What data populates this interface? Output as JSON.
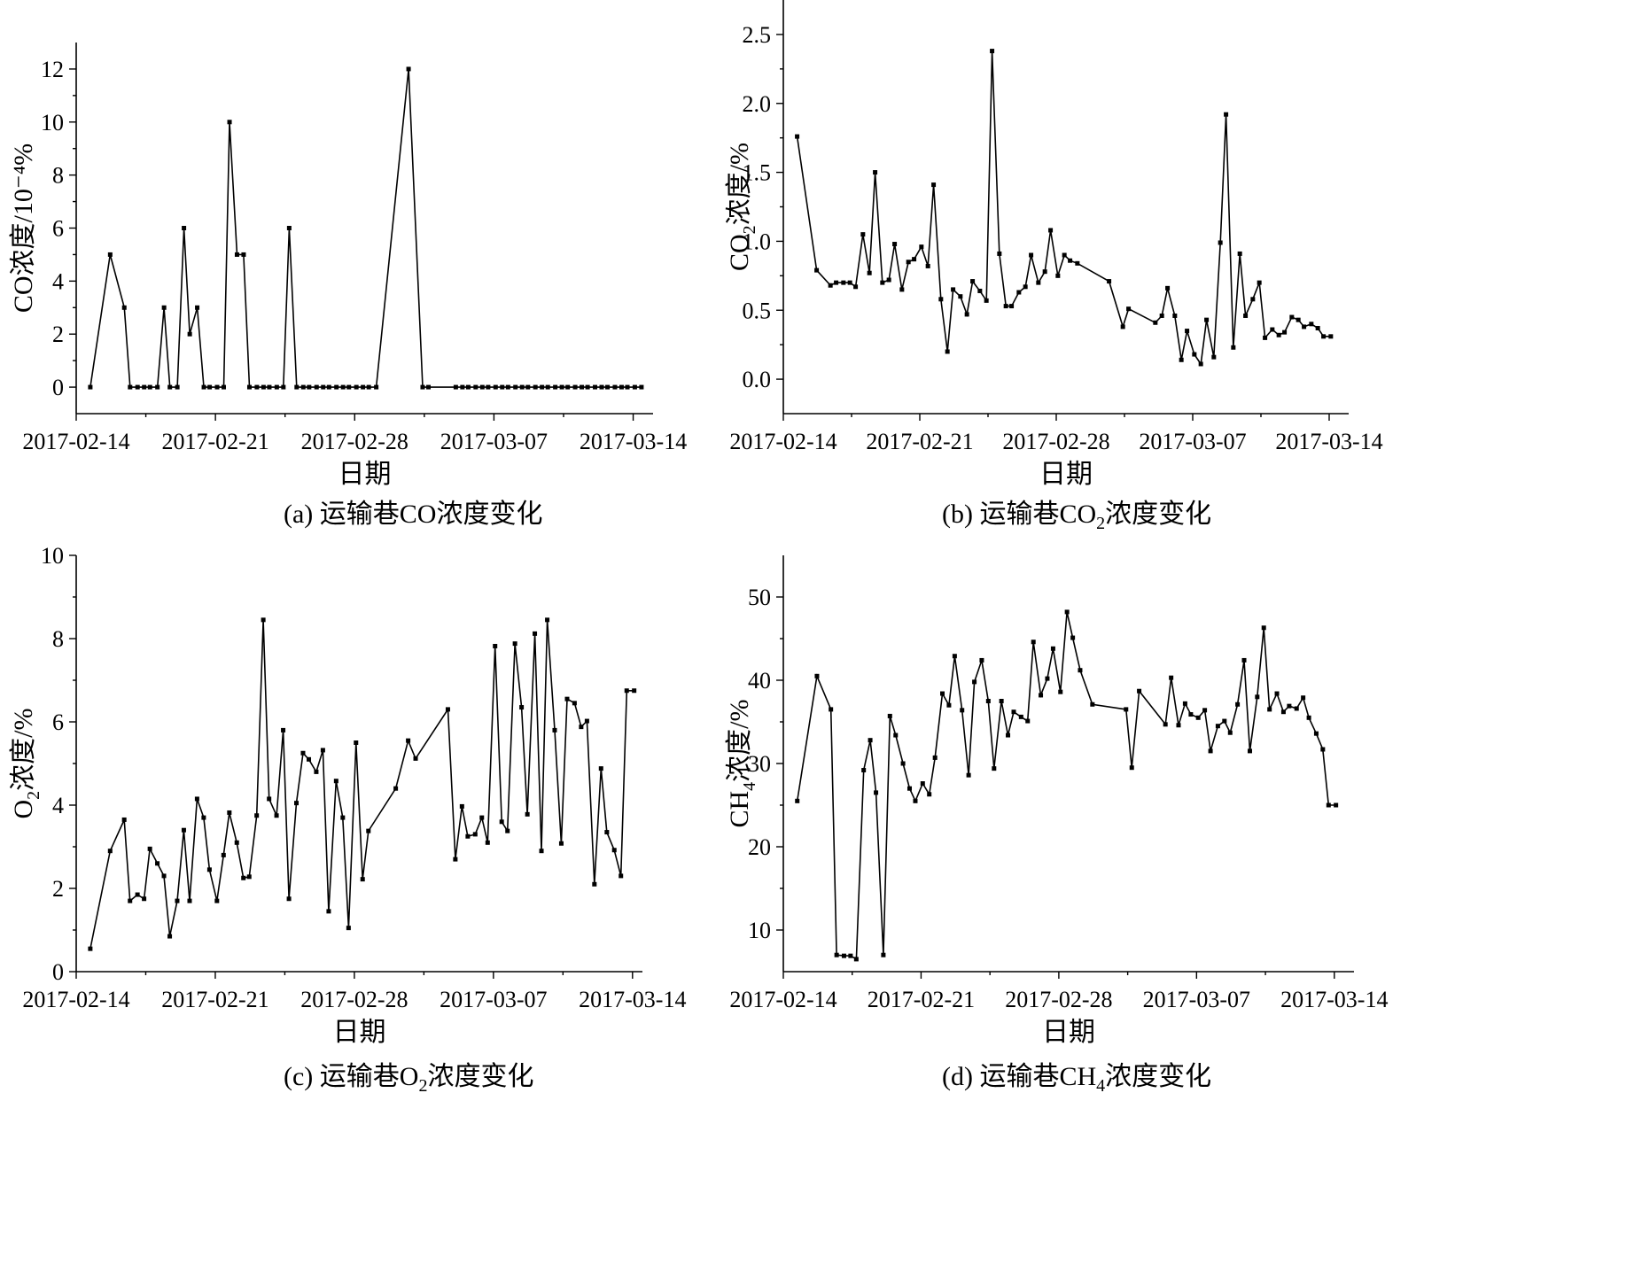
{
  "chart_data": [
    {
      "type": "line",
      "panel": "a",
      "caption": "(a) 运输巷CO浓度变化",
      "xlabel": "日期",
      "ylabel": "CO浓度/10⁻⁴%",
      "ylim": [
        -1,
        13
      ],
      "yticks": [
        0,
        2,
        4,
        6,
        8,
        10,
        12
      ],
      "xlim": [
        "2017-02-14",
        "2017-03-15"
      ],
      "xticks": [
        "2017-02-14",
        "2017-02-21",
        "2017-02-28",
        "2017-03-07",
        "2017-03-14"
      ],
      "x": [
        "2017-02-14T17:00",
        "2017-02-15T17:00",
        "2017-02-16T10:00",
        "2017-02-16T17:00",
        "2017-02-17T02:00",
        "2017-02-17T10:00",
        "2017-02-17T17:00",
        "2017-02-18T02:00",
        "2017-02-18T10:00",
        "2017-02-18T17:00",
        "2017-02-19T02:00",
        "2017-02-19T10:00",
        "2017-02-19T17:00",
        "2017-02-20T02:00",
        "2017-02-20T10:00",
        "2017-02-20T17:00",
        "2017-02-21T02:00",
        "2017-02-21T10:00",
        "2017-02-21T17:00",
        "2017-02-22T02:00",
        "2017-02-22T10:00",
        "2017-02-22T17:00",
        "2017-02-23T02:00",
        "2017-02-23T10:00",
        "2017-02-23T17:00",
        "2017-02-24T02:00",
        "2017-02-24T10:00",
        "2017-02-24T17:00",
        "2017-02-25T02:00",
        "2017-02-25T10:00",
        "2017-02-25T17:00",
        "2017-02-26T02:00",
        "2017-02-26T10:00",
        "2017-02-26T17:00",
        "2017-02-27T02:00",
        "2017-02-27T10:00",
        "2017-02-27T17:00",
        "2017-02-28T02:00",
        "2017-02-28T10:00",
        "2017-02-28T17:00",
        "2017-03-01T02:00",
        "2017-03-02T17:00",
        "2017-03-03T10:00",
        "2017-03-03T17:00",
        "2017-03-05T02:00",
        "2017-03-05T10:00",
        "2017-03-05T17:00",
        "2017-03-06T02:00",
        "2017-03-06T10:00",
        "2017-03-06T17:00",
        "2017-03-07T02:00",
        "2017-03-07T10:00",
        "2017-03-07T17:00",
        "2017-03-08T02:00",
        "2017-03-08T10:00",
        "2017-03-08T17:00",
        "2017-03-09T02:00",
        "2017-03-09T10:00",
        "2017-03-09T17:00",
        "2017-03-10T02:00",
        "2017-03-10T10:00",
        "2017-03-10T17:00",
        "2017-03-11T02:00",
        "2017-03-11T10:00",
        "2017-03-11T17:00",
        "2017-03-12T02:00",
        "2017-03-12T10:00",
        "2017-03-12T17:00",
        "2017-03-13T02:00",
        "2017-03-13T10:00",
        "2017-03-13T17:00",
        "2017-03-14T02:00",
        "2017-03-14T10:00"
      ],
      "y": [
        0,
        5,
        3,
        0,
        0,
        0,
        0,
        0,
        3,
        0,
        0,
        6,
        2,
        3,
        0,
        0,
        0,
        0,
        10,
        5,
        5,
        0,
        0,
        0,
        0,
        0,
        0,
        6,
        0,
        0,
        0,
        0,
        0,
        0,
        0,
        0,
        0,
        0,
        0,
        0,
        0,
        12,
        0,
        0,
        0,
        0,
        0,
        0,
        0,
        0,
        0,
        0,
        0,
        0,
        0,
        0,
        0,
        0,
        0,
        0,
        0,
        0,
        0,
        0,
        0,
        0,
        0,
        0,
        0,
        0,
        0,
        0,
        0
      ]
    },
    {
      "type": "line",
      "panel": "b",
      "caption_prefix": "(b) 运输巷CO",
      "caption_sub": "2",
      "caption_suffix": "浓度变化",
      "xlabel": "日期",
      "ylabel_prefix": "CO",
      "ylabel_sub": "2",
      "ylabel_suffix": "浓度/%",
      "ylim": [
        -0.25,
        2.75
      ],
      "yticks": [
        0.0,
        0.5,
        1.0,
        1.5,
        2.0,
        2.5
      ],
      "ytick_labels": [
        "0.0",
        "0.5",
        "1.0",
        "1.5",
        "2.0",
        "2.5"
      ],
      "xlim": [
        "2017-02-14",
        "2017-03-15"
      ],
      "xticks": [
        "2017-02-14",
        "2017-02-21",
        "2017-02-28",
        "2017-03-07",
        "2017-03-14"
      ],
      "x": [
        "2017-02-14T17:00",
        "2017-02-15T17:00",
        "2017-02-16T10:00",
        "2017-02-16T17:00",
        "2017-02-17T02:00",
        "2017-02-17T10:00",
        "2017-02-17T17:00",
        "2017-02-18T02:00",
        "2017-02-18T10:00",
        "2017-02-18T17:00",
        "2017-02-19T02:00",
        "2017-02-19T10:00",
        "2017-02-19T17:00",
        "2017-02-20T02:00",
        "2017-02-20T10:00",
        "2017-02-20T17:00",
        "2017-02-21T02:00",
        "2017-02-21T10:00",
        "2017-02-21T17:00",
        "2017-02-22T02:00",
        "2017-02-22T10:00",
        "2017-02-22T17:00",
        "2017-02-23T02:00",
        "2017-02-23T10:00",
        "2017-02-23T17:00",
        "2017-02-24T02:00",
        "2017-02-24T10:00",
        "2017-02-24T17:00",
        "2017-02-25T02:00",
        "2017-02-25T10:00",
        "2017-02-25T17:00",
        "2017-02-26T02:00",
        "2017-02-26T10:00",
        "2017-02-26T17:00",
        "2017-02-27T02:00",
        "2017-02-27T10:00",
        "2017-02-27T17:00",
        "2017-02-28T02:00",
        "2017-02-28T10:00",
        "2017-02-28T17:00",
        "2017-03-01T02:00",
        "2017-03-02T17:00",
        "2017-03-03T10:00",
        "2017-03-03T17:00",
        "2017-03-05T02:00",
        "2017-03-05T10:00",
        "2017-03-05T17:00",
        "2017-03-06T02:00",
        "2017-03-06T10:00",
        "2017-03-06T17:00",
        "2017-03-07T02:00",
        "2017-03-07T10:00",
        "2017-03-07T17:00",
        "2017-03-08T02:00",
        "2017-03-08T10:00",
        "2017-03-08T17:00",
        "2017-03-09T02:00",
        "2017-03-09T10:00",
        "2017-03-09T17:00",
        "2017-03-10T02:00",
        "2017-03-10T10:00",
        "2017-03-10T17:00",
        "2017-03-11T02:00",
        "2017-03-11T10:00",
        "2017-03-11T17:00",
        "2017-03-12T02:00",
        "2017-03-12T10:00",
        "2017-03-12T17:00",
        "2017-03-13T02:00",
        "2017-03-13T10:00",
        "2017-03-13T17:00",
        "2017-03-14T02:00"
      ],
      "y": [
        1.76,
        0.79,
        0.68,
        0.7,
        0.7,
        0.7,
        0.67,
        1.05,
        0.77,
        1.5,
        0.7,
        0.72,
        0.98,
        0.65,
        0.85,
        0.87,
        0.96,
        0.82,
        1.41,
        0.58,
        0.2,
        0.65,
        0.6,
        0.47,
        0.71,
        0.64,
        0.57,
        2.38,
        0.91,
        0.53,
        0.53,
        0.63,
        0.67,
        0.9,
        0.7,
        0.78,
        1.08,
        0.75,
        0.9,
        0.86,
        0.84,
        0.71,
        0.38,
        0.51,
        0.41,
        0.46,
        0.66,
        0.46,
        0.14,
        0.35,
        0.18,
        0.11,
        0.43,
        0.16,
        0.99,
        1.92,
        0.23,
        0.91,
        0.46,
        0.58,
        0.7,
        0.3,
        0.36,
        0.32,
        0.34,
        0.45,
        0.43,
        0.38,
        0.4,
        0.37,
        0.31,
        0.31
      ]
    },
    {
      "type": "line",
      "panel": "c",
      "caption_prefix": "(c) 运输巷O",
      "caption_sub": "2",
      "caption_suffix": "浓度变化",
      "xlabel": "日期",
      "ylabel_prefix": "O",
      "ylabel_sub": "2",
      "ylabel_suffix": "浓度/%",
      "ylim": [
        0,
        10
      ],
      "yticks": [
        0,
        2,
        4,
        6,
        8,
        10
      ],
      "xlim": [
        "2017-02-14",
        "2017-03-14T12:00"
      ],
      "xticks": [
        "2017-02-14",
        "2017-02-21",
        "2017-02-28",
        "2017-03-07",
        "2017-03-14"
      ],
      "x": [
        "2017-02-14T17:00",
        "2017-02-15T17:00",
        "2017-02-16T10:00",
        "2017-02-16T17:00",
        "2017-02-17T02:00",
        "2017-02-17T10:00",
        "2017-02-17T17:00",
        "2017-02-18T02:00",
        "2017-02-18T10:00",
        "2017-02-18T17:00",
        "2017-02-19T02:00",
        "2017-02-19T10:00",
        "2017-02-19T17:00",
        "2017-02-20T02:00",
        "2017-02-20T10:00",
        "2017-02-20T17:00",
        "2017-02-21T02:00",
        "2017-02-21T10:00",
        "2017-02-21T17:00",
        "2017-02-22T02:00",
        "2017-02-22T10:00",
        "2017-02-22T17:00",
        "2017-02-23T02:00",
        "2017-02-23T10:00",
        "2017-02-23T17:00",
        "2017-02-24T02:00",
        "2017-02-24T10:00",
        "2017-02-24T17:00",
        "2017-02-25T02:00",
        "2017-02-25T10:00",
        "2017-02-25T17:00",
        "2017-02-26T02:00",
        "2017-02-26T10:00",
        "2017-02-26T17:00",
        "2017-02-27T02:00",
        "2017-02-27T10:00",
        "2017-02-27T17:00",
        "2017-02-28T02:00",
        "2017-02-28T10:00",
        "2017-02-28T17:00",
        "2017-03-02T02:00",
        "2017-03-02T17:00",
        "2017-03-03T02:00",
        "2017-03-04T17:00",
        "2017-03-05T02:00",
        "2017-03-05T10:00",
        "2017-03-05T17:00",
        "2017-03-06T02:00",
        "2017-03-06T10:00",
        "2017-03-06T17:00",
        "2017-03-07T02:00",
        "2017-03-07T10:00",
        "2017-03-07T17:00",
        "2017-03-08T02:00",
        "2017-03-08T10:00",
        "2017-03-08T17:00",
        "2017-03-09T02:00",
        "2017-03-09T10:00",
        "2017-03-09T17:00",
        "2017-03-10T02:00",
        "2017-03-10T10:00",
        "2017-03-10T17:00",
        "2017-03-11T02:00",
        "2017-03-11T10:00",
        "2017-03-11T17:00",
        "2017-03-12T02:00",
        "2017-03-12T10:00",
        "2017-03-12T17:00",
        "2017-03-13T02:00",
        "2017-03-13T10:00",
        "2017-03-13T17:00",
        "2017-03-14T02:00"
      ],
      "y": [
        0.55,
        2.9,
        3.65,
        1.7,
        1.85,
        1.75,
        2.95,
        2.6,
        2.3,
        0.85,
        1.7,
        3.4,
        1.7,
        4.15,
        3.7,
        2.45,
        1.7,
        2.8,
        3.82,
        3.1,
        2.25,
        2.28,
        3.75,
        8.45,
        4.15,
        3.75,
        5.8,
        1.75,
        4.05,
        5.25,
        5.1,
        4.8,
        5.32,
        1.45,
        4.58,
        3.7,
        1.05,
        5.5,
        2.22,
        3.38,
        4.4,
        5.55,
        5.12,
        6.3,
        2.7,
        3.97,
        3.25,
        3.3,
        3.7,
        3.1,
        7.82,
        3.6,
        3.38,
        7.88,
        6.35,
        3.78,
        8.12,
        2.9,
        8.45,
        5.8,
        3.08,
        6.55,
        6.45,
        5.88,
        6.02,
        2.1,
        4.88,
        3.35,
        2.92,
        2.3,
        6.75,
        6.75
      ]
    },
    {
      "type": "line",
      "panel": "d",
      "caption_prefix": "(d) 运输巷CH",
      "caption_sub": "4",
      "caption_suffix": "浓度变化",
      "xlabel": "日期",
      "ylabel_prefix": "CH",
      "ylabel_sub": "4",
      "ylabel_suffix": "浓度/%",
      "ylim": [
        5,
        55
      ],
      "yticks": [
        10,
        20,
        30,
        40,
        50
      ],
      "xlim": [
        "2017-02-14",
        "2017-03-15"
      ],
      "xticks": [
        "2017-02-14",
        "2017-02-21",
        "2017-02-28",
        "2017-03-07",
        "2017-03-14"
      ],
      "x": [
        "2017-02-14T17:00",
        "2017-02-15T17:00",
        "2017-02-16T10:00",
        "2017-02-16T17:00",
        "2017-02-17T02:00",
        "2017-02-17T10:00",
        "2017-02-17T17:00",
        "2017-02-18T02:00",
        "2017-02-18T10:00",
        "2017-02-18T17:00",
        "2017-02-19T02:00",
        "2017-02-19T10:00",
        "2017-02-19T17:00",
        "2017-02-20T02:00",
        "2017-02-20T10:00",
        "2017-02-20T17:00",
        "2017-02-21T02:00",
        "2017-02-21T10:00",
        "2017-02-21T17:00",
        "2017-02-22T02:00",
        "2017-02-22T10:00",
        "2017-02-22T17:00",
        "2017-02-23T02:00",
        "2017-02-23T10:00",
        "2017-02-23T17:00",
        "2017-02-24T02:00",
        "2017-02-24T10:00",
        "2017-02-24T17:00",
        "2017-02-25T02:00",
        "2017-02-25T10:00",
        "2017-02-25T17:00",
        "2017-02-26T02:00",
        "2017-02-26T10:00",
        "2017-02-26T17:00",
        "2017-02-27T02:00",
        "2017-02-27T10:00",
        "2017-02-27T17:00",
        "2017-02-28T02:00",
        "2017-02-28T10:00",
        "2017-02-28T17:00",
        "2017-03-01T02:00",
        "2017-03-01T17:00",
        "2017-03-03T10:00",
        "2017-03-03T17:00",
        "2017-03-04T02:00",
        "2017-03-05T10:00",
        "2017-03-05T17:00",
        "2017-03-06T02:00",
        "2017-03-06T10:00",
        "2017-03-06T17:00",
        "2017-03-07T02:00",
        "2017-03-07T10:00",
        "2017-03-07T17:00",
        "2017-03-08T02:00",
        "2017-03-08T10:00",
        "2017-03-08T17:00",
        "2017-03-09T02:00",
        "2017-03-09T10:00",
        "2017-03-09T17:00",
        "2017-03-10T02:00",
        "2017-03-10T10:00",
        "2017-03-10T17:00",
        "2017-03-11T02:00",
        "2017-03-11T10:00",
        "2017-03-11T17:00",
        "2017-03-12T02:00",
        "2017-03-12T10:00",
        "2017-03-12T17:00",
        "2017-03-13T02:00",
        "2017-03-13T10:00",
        "2017-03-13T17:00",
        "2017-03-14T02:00"
      ],
      "y": [
        25.5,
        40.5,
        36.5,
        7.0,
        6.9,
        6.9,
        6.5,
        29.2,
        32.8,
        26.5,
        7.0,
        35.7,
        33.4,
        30.0,
        27.0,
        25.5,
        27.6,
        26.3,
        30.7,
        38.4,
        37.0,
        42.9,
        36.4,
        28.6,
        39.8,
        42.4,
        37.5,
        29.4,
        37.5,
        33.4,
        36.2,
        35.6,
        35.1,
        44.6,
        38.2,
        40.2,
        43.8,
        38.6,
        48.2,
        45.1,
        41.2,
        37.1,
        36.5,
        29.5,
        38.7,
        34.7,
        40.3,
        34.6,
        37.2,
        35.9,
        35.5,
        36.4,
        31.5,
        34.5,
        35.1,
        33.7,
        37.1,
        42.4,
        31.5,
        38.0,
        46.3,
        36.5,
        38.4,
        36.2,
        36.9,
        36.6,
        37.9,
        35.5,
        33.6,
        31.7,
        25.0,
        25.0
      ]
    }
  ]
}
